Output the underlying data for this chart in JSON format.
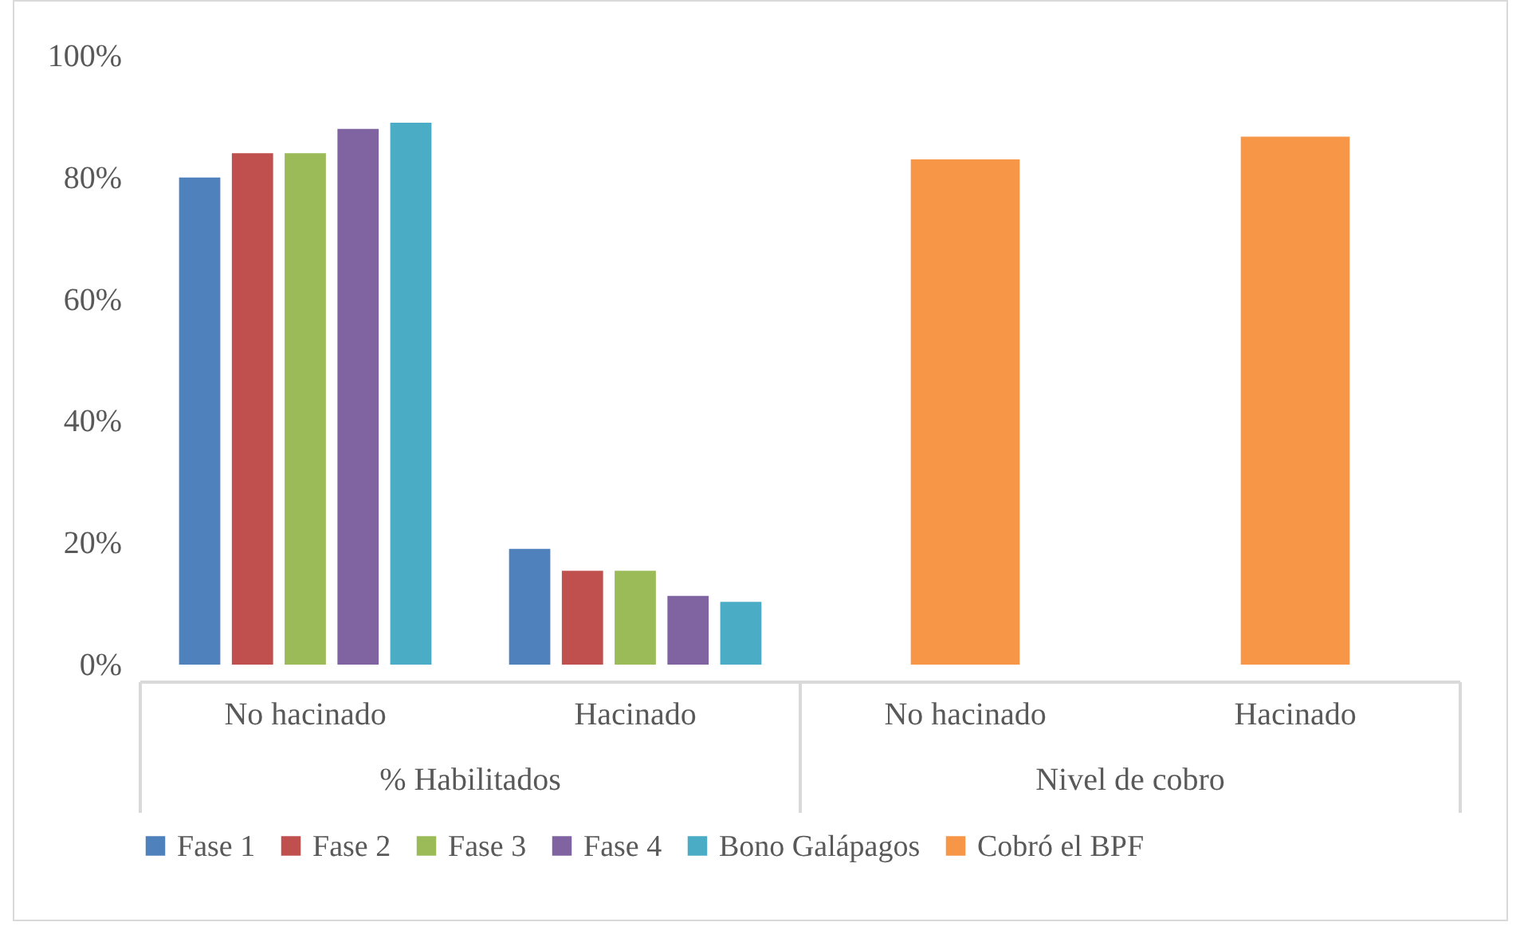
{
  "chart_data": {
    "type": "bar",
    "categories": [
      "No hacinado",
      "Hacinado",
      "No hacinado",
      "Hacinado"
    ],
    "annotations": [
      "% Habilitados",
      "Nivel de cobro"
    ],
    "series": [
      {
        "name": "Fase 1",
        "color": "#4f81bd",
        "values": [
          80,
          19,
          null,
          null
        ]
      },
      {
        "name": "Fase 2",
        "color": "#c0504d",
        "values": [
          84,
          15.4,
          null,
          null
        ]
      },
      {
        "name": "Fase 3",
        "color": "#9bbb59",
        "values": [
          84,
          15.4,
          null,
          null
        ]
      },
      {
        "name": "Fase 4",
        "color": "#8064a2",
        "values": [
          88,
          11.3,
          null,
          null
        ]
      },
      {
        "name": "Bono Galápagos",
        "color": "#4bacc6",
        "values": [
          89,
          10.3,
          null,
          null
        ]
      },
      {
        "name": "Cobró el BPF",
        "color": "#f79646",
        "values": [
          null,
          null,
          83,
          86.7
        ]
      }
    ],
    "ylim": [
      0,
      100
    ],
    "yticks": [
      {
        "value": 0,
        "label": "0%"
      },
      {
        "value": 20,
        "label": "20%"
      },
      {
        "value": 40,
        "label": "40%"
      },
      {
        "value": 60,
        "label": "60%"
      },
      {
        "value": 80,
        "label": "80%"
      },
      {
        "value": 100,
        "label": "100%"
      }
    ],
    "grid": false,
    "legend": "bottom"
  }
}
